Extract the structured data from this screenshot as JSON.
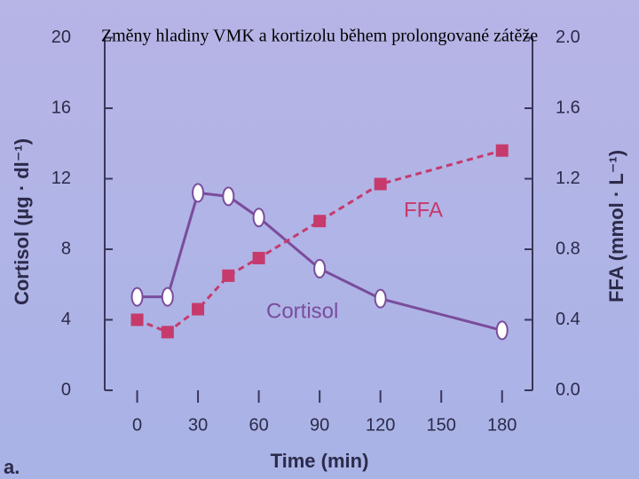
{
  "chart_data": {
    "type": "line",
    "title": "Změny hladiny VMK a kortizolu během prolongované zátěže",
    "x_label": "Time (min)",
    "y_label": "Cortisol (µg · dl⁻¹)",
    "y2_label": "FFA (mmol · L⁻¹)",
    "annotations": [
      "FFA",
      "Cortisol"
    ],
    "panel_label": "a.",
    "x": [
      0,
      15,
      30,
      45,
      60,
      90,
      120,
      180
    ],
    "series": [
      {
        "name": "Cortisol",
        "color": "#7a4c9c",
        "values": [
          5.3,
          5.3,
          11.2,
          11.0,
          9.8,
          6.9,
          5.2,
          3.4
        ]
      },
      {
        "name": "FFA",
        "color": "#c63a6c",
        "axis": "y2",
        "values": [
          0.4,
          0.33,
          0.46,
          0.65,
          0.75,
          0.96,
          1.17,
          1.36
        ]
      }
    ],
    "xlim": [
      -16,
      195
    ],
    "xticks": [
      0,
      30,
      60,
      90,
      120,
      150,
      180
    ],
    "ylim": [
      0,
      20
    ],
    "yticks": [
      0,
      4,
      8,
      12,
      16,
      20
    ],
    "y2lim": [
      0,
      2
    ],
    "y2ticks": [
      {
        "value": 0,
        "label": "0.0"
      },
      0.4,
      0.8,
      1.2,
      1.6,
      {
        "value": 2,
        "label": "2.0"
      }
    ]
  }
}
